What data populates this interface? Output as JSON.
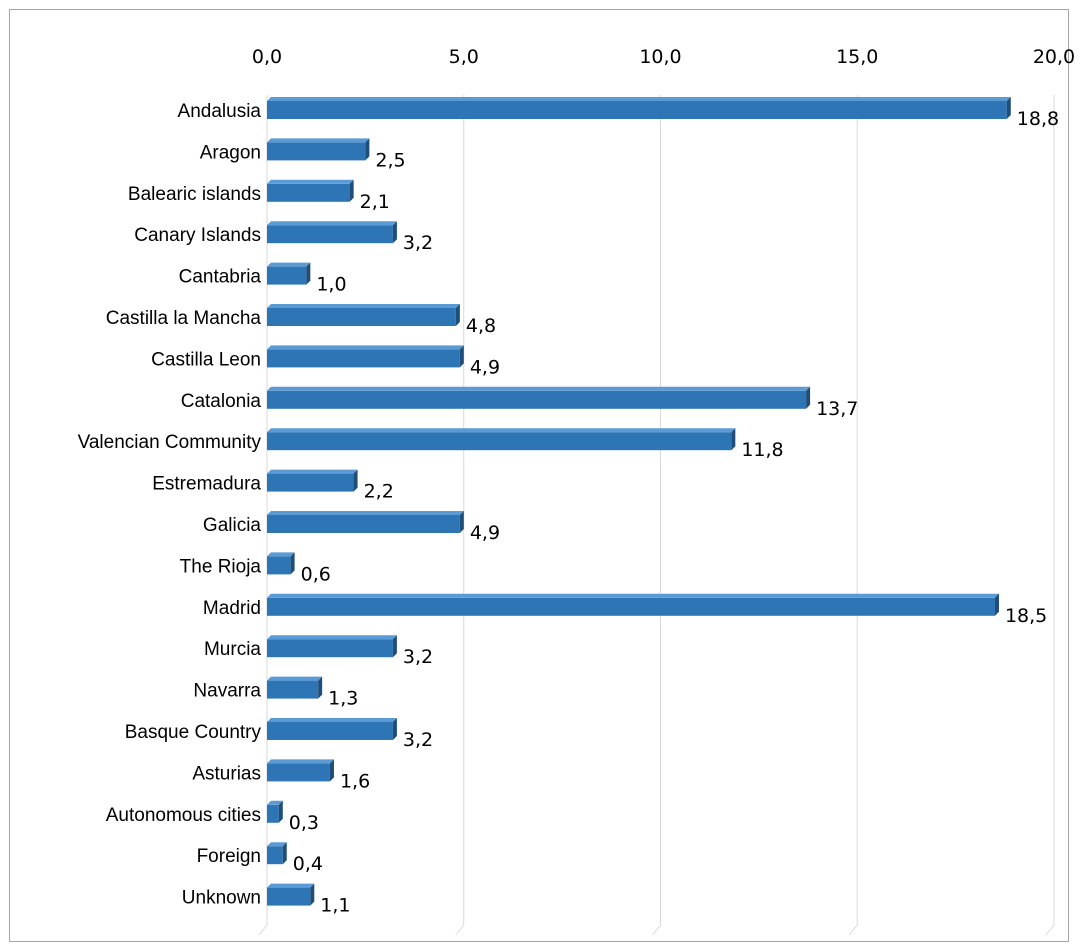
{
  "chart_data": {
    "type": "bar",
    "orientation": "horizontal",
    "style": "3d",
    "categories": [
      "Andalusia",
      "Aragon",
      "Balearic islands",
      "Canary Islands",
      "Cantabria",
      "Castilla la Mancha",
      "Castilla Leon",
      "Catalonia",
      "Valencian Community",
      "Estremadura",
      "Galicia",
      "The Rioja",
      "Madrid",
      "Murcia",
      "Navarra",
      "Basque Country",
      "Asturias",
      "Autonomous cities",
      "Foreign",
      "Unknown"
    ],
    "values": [
      18.8,
      2.5,
      2.1,
      3.2,
      1.0,
      4.8,
      4.9,
      13.7,
      11.8,
      2.2,
      4.9,
      0.6,
      18.5,
      3.2,
      1.3,
      3.2,
      1.6,
      0.3,
      0.4,
      1.1
    ],
    "value_labels": [
      "18,8",
      "2,5",
      "2,1",
      "3,2",
      "1,0",
      "4,8",
      "4,9",
      "13,7",
      "11,8",
      "2,2",
      "4,9",
      "0,6",
      "18,5",
      "3,2",
      "1,3",
      "3,2",
      "1,6",
      "0,3",
      "0,4",
      "1,1"
    ],
    "xlim": [
      0,
      20
    ],
    "x_ticks": [
      0,
      5,
      10,
      15,
      20
    ],
    "x_tick_labels": [
      "0,0",
      "5,0",
      "10,0",
      "15,0",
      "20,0"
    ],
    "x_axis_position": "top",
    "grid": true,
    "legend": false,
    "bar_color": "#2e75b6",
    "bar_side_color": "#1f4e79",
    "bar_top_color": "#5b9bd5",
    "grid_color": "#d9d9d9"
  }
}
